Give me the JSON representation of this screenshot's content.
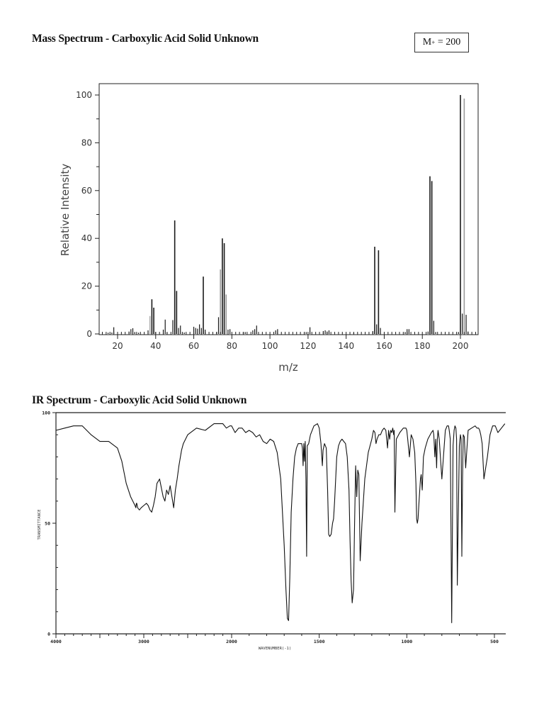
{
  "page": {
    "ms_title": "Mass Spectrum - Carboxylic Acid Solid Unknown",
    "ir_title": "IR Spectrum - Carboxylic Acid Solid Unknown",
    "molecular_ion_box": {
      "label": "M",
      "superscript": "+",
      "value": "= 200"
    }
  },
  "chart_data": [
    {
      "id": "mass-spectrum",
      "type": "bar",
      "title": "Mass Spectrum - Carboxylic Acid Solid Unknown",
      "xlabel": "m/z",
      "ylabel": "Relative Intensity",
      "xlim": [
        10,
        209
      ],
      "ylim": [
        0,
        100
      ],
      "xticks": [
        20,
        40,
        60,
        80,
        100,
        120,
        140,
        160,
        180,
        200
      ],
      "yticks": [
        0,
        20,
        40,
        60,
        80,
        100
      ],
      "grid": false,
      "annotation": "M+ = 200",
      "peaks": [
        {
          "mz": 15,
          "i": 0.5
        },
        {
          "mz": 17,
          "i": 0.6
        },
        {
          "mz": 18,
          "i": 2.8
        },
        {
          "mz": 26,
          "i": 1.0
        },
        {
          "mz": 27,
          "i": 2.0
        },
        {
          "mz": 28,
          "i": 2.4
        },
        {
          "mz": 29,
          "i": 0.8
        },
        {
          "mz": 31,
          "i": 0.5
        },
        {
          "mz": 36,
          "i": 1.5
        },
        {
          "mz": 37,
          "i": 7.5
        },
        {
          "mz": 38,
          "i": 14.5
        },
        {
          "mz": 39,
          "i": 11.0
        },
        {
          "mz": 40,
          "i": 0.8
        },
        {
          "mz": 44,
          "i": 1.8
        },
        {
          "mz": 45,
          "i": 6.0
        },
        {
          "mz": 46,
          "i": 0.6
        },
        {
          "mz": 49,
          "i": 5.8
        },
        {
          "mz": 50,
          "i": 47.5
        },
        {
          "mz": 51,
          "i": 18.0
        },
        {
          "mz": 52,
          "i": 2.5
        },
        {
          "mz": 53,
          "i": 3.5
        },
        {
          "mz": 55,
          "i": 0.6
        },
        {
          "mz": 60,
          "i": 3.0
        },
        {
          "mz": 61,
          "i": 2.5
        },
        {
          "mz": 62,
          "i": 2.2
        },
        {
          "mz": 63,
          "i": 4.0
        },
        {
          "mz": 64,
          "i": 2.5
        },
        {
          "mz": 65,
          "i": 24.0
        },
        {
          "mz": 66,
          "i": 1.8
        },
        {
          "mz": 72,
          "i": 0.8
        },
        {
          "mz": 73,
          "i": 7.0
        },
        {
          "mz": 74,
          "i": 27.0
        },
        {
          "mz": 75,
          "i": 40.0
        },
        {
          "mz": 76,
          "i": 38.0
        },
        {
          "mz": 77,
          "i": 16.5
        },
        {
          "mz": 78,
          "i": 1.8
        },
        {
          "mz": 79,
          "i": 2.0
        },
        {
          "mz": 86,
          "i": 0.8
        },
        {
          "mz": 87,
          "i": 0.8
        },
        {
          "mz": 91,
          "i": 1.5
        },
        {
          "mz": 92,
          "i": 2.0
        },
        {
          "mz": 93,
          "i": 3.5
        },
        {
          "mz": 103,
          "i": 1.5
        },
        {
          "mz": 104,
          "i": 2.0
        },
        {
          "mz": 119,
          "i": 0.8
        },
        {
          "mz": 121,
          "i": 2.8
        },
        {
          "mz": 128,
          "i": 1.2
        },
        {
          "mz": 129,
          "i": 1.5
        },
        {
          "mz": 130,
          "i": 1.0
        },
        {
          "mz": 131,
          "i": 1.5
        },
        {
          "mz": 144,
          "i": 0.5
        },
        {
          "mz": 154,
          "i": 1.2
        },
        {
          "mz": 155,
          "i": 36.5
        },
        {
          "mz": 156,
          "i": 4.0
        },
        {
          "mz": 157,
          "i": 35.0
        },
        {
          "mz": 158,
          "i": 2.5
        },
        {
          "mz": 171,
          "i": 0.8
        },
        {
          "mz": 172,
          "i": 2.0
        },
        {
          "mz": 173,
          "i": 2.0
        },
        {
          "mz": 183,
          "i": 1.0
        },
        {
          "mz": 184,
          "i": 66.0
        },
        {
          "mz": 185,
          "i": 64.0
        },
        {
          "mz": 186,
          "i": 5.5
        },
        {
          "mz": 187,
          "i": 0.8
        },
        {
          "mz": 199,
          "i": 0.8
        },
        {
          "mz": 200,
          "i": 100.0
        },
        {
          "mz": 201,
          "i": 8.5
        },
        {
          "mz": 202,
          "i": 98.5
        },
        {
          "mz": 203,
          "i": 8.0
        },
        {
          "mz": 204,
          "i": 1.0
        }
      ]
    },
    {
      "id": "ir-spectrum",
      "type": "line",
      "title": "IR Spectrum - Carboxylic Acid Solid Unknown",
      "xlabel": "WAVENUMBER(-1)",
      "ylabel": "TRANSMITTANCE",
      "xlim": [
        4000,
        450
      ],
      "ylim": [
        0,
        100
      ],
      "xticks": [
        4000,
        3000,
        2000,
        1500,
        1000,
        500
      ],
      "xtick_labels": [
        "4000",
        "3000",
        "2000",
        "1500",
        "1000",
        "500"
      ],
      "yticks": [
        0,
        50,
        100
      ],
      "ytick_labels": [
        "0",
        "50",
        "100"
      ],
      "grid": false,
      "x_scale_break_at": 2000,
      "series": [
        {
          "name": "Transmittance",
          "x": [
            4000,
            3900,
            3800,
            3700,
            3600,
            3500,
            3400,
            3300,
            3250,
            3200,
            3150,
            3100,
            3090,
            3085,
            3080,
            3070,
            3050,
            3030,
            3000,
            2970,
            2950,
            2930,
            2910,
            2890,
            2870,
            2850,
            2820,
            2800,
            2780,
            2760,
            2740,
            2720,
            2700,
            2680,
            2660,
            2640,
            2620,
            2600,
            2570,
            2550,
            2500,
            2400,
            2300,
            2200,
            2100,
            2060,
            2020,
            2000,
            1980,
            1960,
            1940,
            1920,
            1900,
            1880,
            1860,
            1840,
            1820,
            1800,
            1780,
            1760,
            1740,
            1720,
            1700,
            1690,
            1682,
            1675,
            1668,
            1660,
            1650,
            1640,
            1630,
            1620,
            1610,
            1600,
            1596,
            1592,
            1588,
            1584,
            1580,
            1576,
            1572,
            1568,
            1560,
            1550,
            1530,
            1510,
            1500,
            1490,
            1482,
            1478,
            1470,
            1460,
            1452,
            1446,
            1440,
            1432,
            1424,
            1418,
            1412,
            1406,
            1400,
            1390,
            1380,
            1370,
            1360,
            1350,
            1340,
            1330,
            1324,
            1318,
            1312,
            1304,
            1298,
            1292,
            1286,
            1280,
            1274,
            1266,
            1256,
            1240,
            1220,
            1200,
            1190,
            1182,
            1176,
            1170,
            1160,
            1150,
            1140,
            1130,
            1120,
            1110,
            1104,
            1098,
            1092,
            1086,
            1080,
            1075,
            1072,
            1068,
            1060,
            1040,
            1020,
            1005,
            1000,
            995,
            985,
            975,
            965,
            955,
            948,
            944,
            940,
            936,
            930,
            922,
            918,
            912,
            905,
            895,
            880,
            860,
            850,
            846,
            840,
            835,
            830,
            826,
            822,
            815,
            800,
            780,
            770,
            762,
            758,
            752,
            744,
            736,
            730,
            725,
            720,
            716,
            712,
            708,
            700,
            694,
            690,
            686,
            682,
            678,
            672,
            664,
            650,
            630,
            610,
            600,
            590,
            584,
            578,
            570,
            560,
            540,
            525,
            510,
            495,
            480,
            460,
            440
          ],
          "y": [
            92,
            93,
            94,
            94,
            90,
            87,
            87,
            84,
            78,
            68,
            62,
            58,
            57,
            59,
            59,
            57,
            56,
            57,
            58,
            59,
            58,
            56,
            55,
            58,
            62,
            68,
            70,
            66,
            62,
            60,
            65,
            63,
            67,
            62,
            57,
            65,
            70,
            76,
            83,
            86,
            90,
            93,
            92,
            95,
            95,
            93,
            94,
            94,
            91,
            93,
            93,
            91,
            92,
            91,
            89,
            90,
            87,
            86,
            88,
            87,
            82,
            70,
            40,
            20,
            7,
            6,
            25,
            55,
            70,
            80,
            84,
            86,
            86,
            86,
            84,
            76,
            86,
            78,
            87,
            70,
            35,
            85,
            86,
            90,
            94,
            95,
            93,
            86,
            76,
            83,
            86,
            84,
            65,
            45,
            44,
            45,
            50,
            52,
            60,
            70,
            80,
            85,
            87,
            88,
            87,
            86,
            80,
            65,
            42,
            24,
            14,
            20,
            50,
            76,
            62,
            74,
            72,
            33,
            50,
            70,
            82,
            88,
            92,
            91,
            86,
            88,
            90,
            90,
            92,
            93,
            92,
            84,
            92,
            88,
            92,
            91,
            93,
            90,
            92,
            55,
            88,
            91,
            93,
            93,
            92,
            88,
            80,
            90,
            88,
            82,
            68,
            52,
            50,
            52,
            60,
            70,
            72,
            65,
            80,
            84,
            88,
            91,
            92,
            90,
            80,
            88,
            75,
            88,
            92,
            88,
            70,
            92,
            94,
            94,
            92,
            88,
            5,
            85,
            92,
            94,
            93,
            88,
            22,
            45,
            85,
            90,
            88,
            35,
            70,
            90,
            89,
            75,
            92,
            93,
            94,
            93,
            93,
            92,
            90,
            86,
            70,
            80,
            90,
            94,
            94,
            91,
            93,
            95
          ]
        }
      ]
    }
  ]
}
